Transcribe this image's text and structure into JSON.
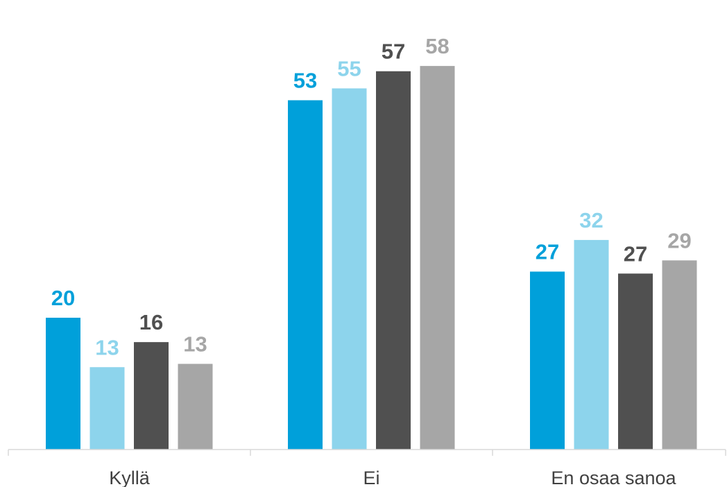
{
  "chart_data": {
    "type": "bar",
    "categories": [
      "Kyllä",
      "Ei",
      "En osaa sanoa"
    ],
    "series": [
      {
        "values": [
          20,
          53,
          27
        ],
        "color": "#00A0DA"
      },
      {
        "values": [
          13,
          55,
          32
        ],
        "color": "#8DD4EC"
      },
      {
        "values": [
          16,
          57,
          27
        ],
        "color": "#505050"
      },
      {
        "values": [
          13,
          58,
          29
        ],
        "color": "#A6A6A6"
      }
    ],
    "bar_heights_reference": [
      [
        20,
        53,
        27
      ],
      [
        12.5,
        54.8,
        31.8
      ],
      [
        16.3,
        57.4,
        26.7
      ],
      [
        13,
        58.2,
        28.7
      ]
    ],
    "ylim": [
      0,
      64
    ],
    "grid": false,
    "legend": "none",
    "axis_color": "#D9D9D9"
  }
}
